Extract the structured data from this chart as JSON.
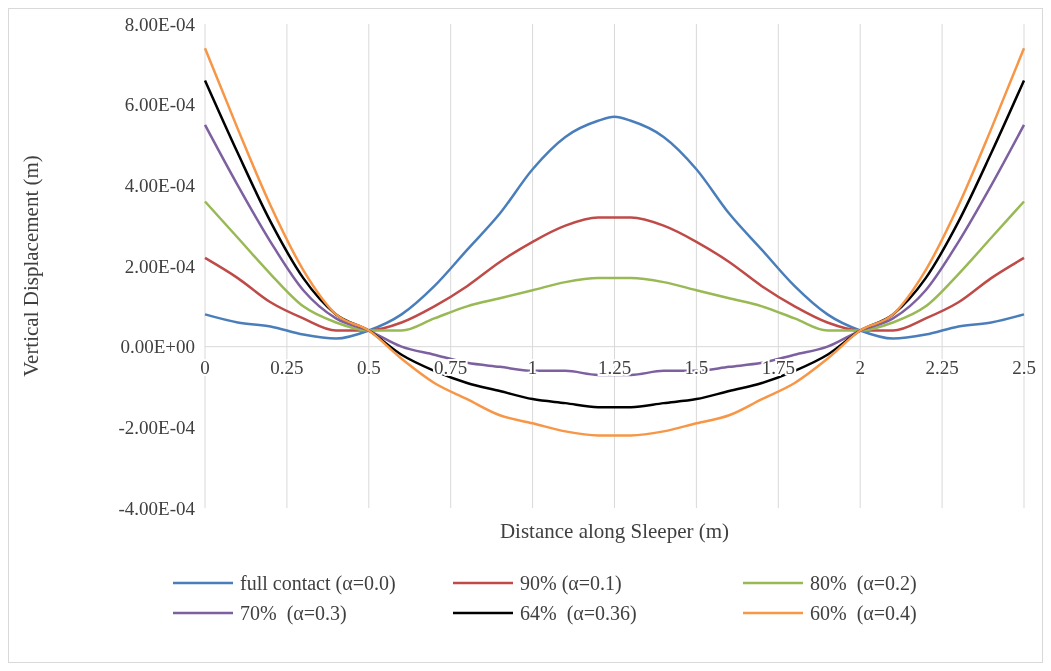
{
  "chart_data": {
    "type": "line",
    "xlabel": "Distance along Sleeper (m)",
    "ylabel": "Vertical Displacement (m)",
    "x": [
      0,
      0.1,
      0.2,
      0.3,
      0.4,
      0.5,
      0.6,
      0.7,
      0.8,
      0.9,
      1.0,
      1.1,
      1.2,
      1.25,
      1.3,
      1.4,
      1.5,
      1.6,
      1.7,
      1.8,
      1.9,
      2.0,
      2.1,
      2.2,
      2.3,
      2.4,
      2.5
    ],
    "series": [
      {
        "name": "full contact (α=0.0)",
        "color": "#4a7ebb",
        "values": [
          8e-05,
          6e-05,
          5e-05,
          3e-05,
          2e-05,
          4e-05,
          8e-05,
          0.00015,
          0.00024,
          0.00033,
          0.00044,
          0.00052,
          0.00056,
          0.00057,
          0.00056,
          0.00052,
          0.00044,
          0.00033,
          0.00024,
          0.00015,
          8e-05,
          4e-05,
          2e-05,
          3e-05,
          5e-05,
          6e-05,
          8e-05
        ]
      },
      {
        "name": "90% (α=0.1)",
        "color": "#be4b48",
        "values": [
          0.00022,
          0.00017,
          0.00011,
          7e-05,
          4e-05,
          4e-05,
          6e-05,
          0.0001,
          0.00015,
          0.00021,
          0.00026,
          0.0003,
          0.00032,
          0.00032,
          0.00032,
          0.0003,
          0.00026,
          0.00021,
          0.00015,
          0.0001,
          6e-05,
          4e-05,
          4e-05,
          7e-05,
          0.00011,
          0.00017,
          0.00022
        ]
      },
      {
        "name": "80%  (α=0.2)",
        "color": "#98b954",
        "values": [
          0.00036,
          0.00027,
          0.00018,
          0.0001,
          6e-05,
          4e-05,
          4e-05,
          7e-05,
          0.0001,
          0.00012,
          0.00014,
          0.00016,
          0.00017,
          0.00017,
          0.00017,
          0.00016,
          0.00014,
          0.00012,
          0.0001,
          7e-05,
          4e-05,
          4e-05,
          6e-05,
          0.0001,
          0.00018,
          0.00027,
          0.00036
        ]
      },
      {
        "name": "70%  (α=0.3)",
        "color": "#7d60a0",
        "values": [
          0.00055,
          0.0004,
          0.00026,
          0.00014,
          7e-05,
          4e-05,
          0,
          -2e-05,
          -4e-05,
          -5e-05,
          -6e-05,
          -6e-05,
          -7e-05,
          -7e-05,
          -7e-05,
          -6e-05,
          -6e-05,
          -5e-05,
          -4e-05,
          -2e-05,
          0,
          4e-05,
          7e-05,
          0.00014,
          0.00026,
          0.0004,
          0.00055
        ]
      },
      {
        "name": "64%  (α=0.36)",
        "color": "#000000",
        "values": [
          0.00066,
          0.00048,
          0.00031,
          0.00017,
          8e-05,
          4e-05,
          -2e-05,
          -6e-05,
          -9e-05,
          -0.00011,
          -0.00013,
          -0.00014,
          -0.00015,
          -0.00015,
          -0.00015,
          -0.00014,
          -0.00013,
          -0.00011,
          -9e-05,
          -6e-05,
          -2e-05,
          4e-05,
          8e-05,
          0.00017,
          0.00031,
          0.00048,
          0.00066
        ]
      },
      {
        "name": "60%  (α=0.4)",
        "color": "#f79646",
        "values": [
          0.00074,
          0.00054,
          0.00035,
          0.00019,
          8e-05,
          4e-05,
          -3e-05,
          -9e-05,
          -0.00013,
          -0.00017,
          -0.00019,
          -0.00021,
          -0.00022,
          -0.00022,
          -0.00022,
          -0.00021,
          -0.00019,
          -0.00017,
          -0.00013,
          -9e-05,
          -3e-05,
          4e-05,
          8e-05,
          0.00019,
          0.00035,
          0.00054,
          0.00074
        ]
      }
    ],
    "xlim": [
      0,
      2.5
    ],
    "xticks": [
      0,
      0.25,
      0.5,
      0.75,
      1,
      1.25,
      1.5,
      1.75,
      2,
      2.25,
      2.5
    ],
    "ylim": [
      -0.0004,
      0.0008
    ],
    "yticks": [
      {
        "value": -0.0004,
        "label": "-4.00E-04"
      },
      {
        "value": -0.0002,
        "label": "-2.00E-04"
      },
      {
        "value": 0,
        "label": "0.00E+00"
      },
      {
        "value": 0.0002,
        "label": "2.00E-04"
      },
      {
        "value": 0.0004,
        "label": "4.00E-04"
      },
      {
        "value": 0.0006,
        "label": "6.00E-04"
      },
      {
        "value": 0.0008,
        "label": "8.00E-04"
      }
    ],
    "grid": "x",
    "legend": "bottom",
    "marker": "none",
    "line_style": "solid"
  }
}
